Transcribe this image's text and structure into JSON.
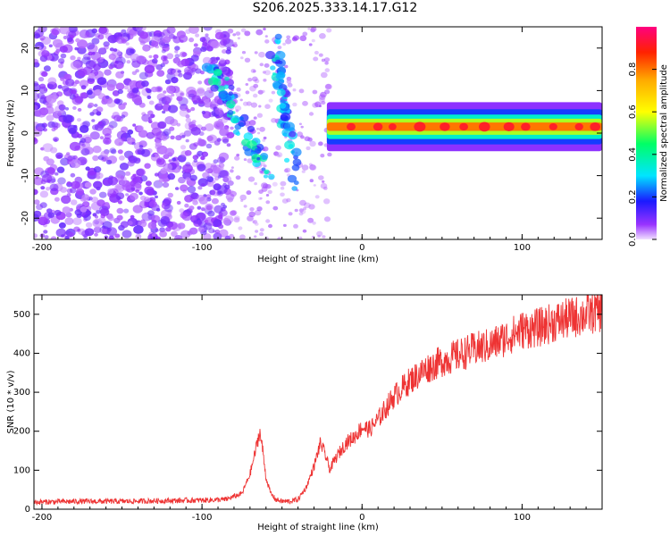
{
  "title": "S206.2025.333.14.17.G12",
  "chart_data": [
    {
      "type": "heatmap",
      "xlabel": "Height of straight line (km)",
      "ylabel": "Frequency (Hz)",
      "xlim": [
        -205,
        150
      ],
      "ylim": [
        -25,
        25
      ],
      "xticks": [
        -200,
        -100,
        0,
        100
      ],
      "yticks": [
        -20,
        -10,
        0,
        10,
        20
      ],
      "colorbar": {
        "label": "Normalized spectral amplitude",
        "ticks": [
          0.0,
          0.2,
          0.4,
          0.6,
          0.8
        ],
        "range": [
          0,
          1
        ]
      },
      "features": [
        {
          "name": "noise",
          "x_range": [
            -205,
            -82
          ],
          "f_range": [
            -25,
            25
          ],
          "amplitude": 0.15
        },
        {
          "name": "diagonal-branch",
          "from": [
            -95,
            16
          ],
          "to": [
            -58,
            -10
          ],
          "amplitude": 0.35
        },
        {
          "name": "arc-branch",
          "from": [
            -55,
            22
          ],
          "to": [
            -42,
            -12
          ],
          "amplitude": 0.3
        },
        {
          "name": "tone",
          "x_range": [
            -22,
            150
          ],
          "frequency_hz": 1.5,
          "amplitude": 0.95
        }
      ]
    },
    {
      "type": "line",
      "xlabel": "Height of straight line (km)",
      "ylabel": "SNR (10 * v/v)",
      "xlim": [
        -205,
        150
      ],
      "ylim": [
        0,
        550
      ],
      "xticks": [
        -200,
        -100,
        0,
        100
      ],
      "yticks": [
        0,
        100,
        200,
        300,
        400,
        500
      ],
      "series": [
        {
          "name": "SNR",
          "color": "#ee3333",
          "x": [
            -205,
            -180,
            -150,
            -120,
            -100,
            -85,
            -75,
            -70,
            -66,
            -64,
            -62,
            -60,
            -57,
            -54,
            -50,
            -45,
            -40,
            -35,
            -30,
            -26,
            -23,
            -20,
            -18,
            -15,
            -10,
            -5,
            0,
            5,
            10,
            15,
            20,
            30,
            40,
            50,
            60,
            70,
            80,
            90,
            100,
            110,
            120,
            130,
            140,
            150
          ],
          "values": [
            18,
            20,
            20,
            22,
            23,
            25,
            40,
            90,
            160,
            200,
            150,
            80,
            40,
            25,
            20,
            20,
            25,
            55,
            110,
            170,
            140,
            100,
            120,
            140,
            170,
            185,
            210,
            205,
            230,
            260,
            290,
            330,
            360,
            380,
            395,
            410,
            420,
            440,
            460,
            465,
            480,
            490,
            500,
            510
          ]
        }
      ]
    }
  ]
}
